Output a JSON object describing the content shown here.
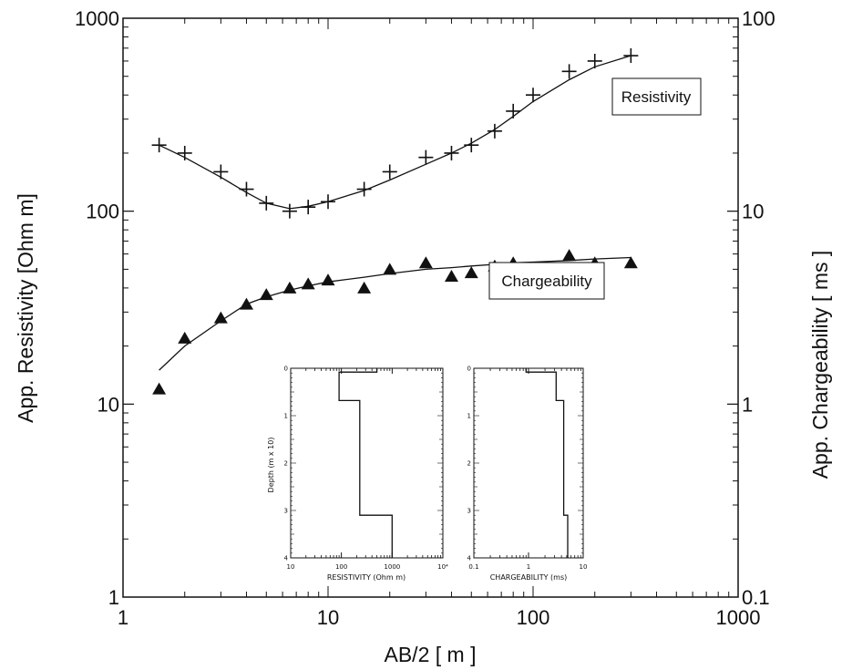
{
  "chart_data": [
    {
      "type": "scatter",
      "title": "",
      "xlabel": "AB/2  [ m ]",
      "ylabel": "App. Resistivity  [Ohm m]",
      "y2label": "App. Chargeability  [ ms ]",
      "xscale": "log",
      "yscale": "log",
      "y2scale": "log",
      "xlim": [
        1,
        1000
      ],
      "ylim": [
        1,
        1000
      ],
      "y2lim": [
        0.1,
        100
      ],
      "x_tick_labels": [
        "1",
        "10",
        "100",
        "1000"
      ],
      "y_tick_labels": [
        "1",
        "10",
        "100",
        "1000"
      ],
      "y2_tick_labels": [
        "0.1",
        "1",
        "10",
        "100"
      ],
      "grid": false,
      "series": [
        {
          "name": "Resistivity",
          "marker": "plus",
          "axis": "left",
          "x": [
            1.5,
            2,
            3,
            4,
            5,
            6.5,
            8,
            10,
            15,
            20,
            30,
            40,
            50,
            65,
            80,
            100,
            150,
            200,
            300
          ],
          "y": [
            220,
            200,
            160,
            130,
            110,
            100,
            105,
            112,
            130,
            160,
            190,
            200,
            220,
            260,
            330,
            400,
            530,
            600,
            640
          ],
          "fit_x": [
            1.5,
            2,
            3,
            4,
            5,
            6.5,
            8,
            10,
            15,
            20,
            30,
            40,
            50,
            65,
            80,
            100,
            150,
            200,
            300
          ],
          "fit_y": [
            220,
            190,
            150,
            125,
            110,
            103,
            106,
            112,
            128,
            145,
            175,
            200,
            225,
            265,
            310,
            370,
            480,
            560,
            640
          ]
        },
        {
          "name": "Chargeability",
          "marker": "triangle",
          "axis": "right",
          "x": [
            1.5,
            2,
            3,
            4,
            5,
            6.5,
            8,
            10,
            15,
            20,
            30,
            40,
            50,
            65,
            80,
            100,
            150,
            200,
            300
          ],
          "y": [
            1.2,
            2.2,
            2.8,
            3.3,
            3.7,
            4.0,
            4.2,
            4.4,
            4.0,
            5.0,
            5.4,
            4.6,
            4.8,
            5.2,
            5.4,
            5.0,
            5.9,
            5.4,
            5.4
          ],
          "fit_x": [
            1.5,
            2,
            3,
            4,
            5,
            6.5,
            8,
            10,
            15,
            20,
            30,
            40,
            50,
            65,
            80,
            100,
            150,
            200,
            300
          ],
          "fit_y": [
            1.5,
            2.0,
            2.7,
            3.3,
            3.6,
            3.9,
            4.1,
            4.3,
            4.55,
            4.75,
            5.0,
            5.1,
            5.2,
            5.3,
            5.4,
            5.45,
            5.55,
            5.65,
            5.75
          ]
        }
      ],
      "annotations": [
        "Resistivity",
        "Chargeability"
      ]
    },
    {
      "type": "line",
      "title": "",
      "xlabel": "RESISTIVITY (Ohm m)",
      "ylabel": "Depth (m x 10)",
      "xscale": "log",
      "xlim": [
        10,
        10000
      ],
      "ylim": [
        4,
        0
      ],
      "x_tick_labels": [
        "10",
        "100",
        "1000",
        "10⁴"
      ],
      "y_tick_labels": [
        "0",
        "1",
        "2",
        "3",
        "4"
      ],
      "series": [
        {
          "name": "",
          "step_values": [
            500,
            90,
            230,
            1000
          ],
          "layer_tops": [
            0,
            0.08,
            0.68,
            3.1
          ],
          "layer_bottom": 4
        }
      ]
    },
    {
      "type": "line",
      "title": "",
      "xlabel": "CHARGEABILITY (ms)",
      "ylabel": "",
      "xscale": "log",
      "xlim": [
        0.1,
        10
      ],
      "ylim": [
        4,
        0
      ],
      "x_tick_labels": [
        "0.1",
        "1",
        "10"
      ],
      "y_tick_labels": [
        "0",
        "1",
        "2",
        "3",
        "4"
      ],
      "series": [
        {
          "name": "",
          "step_values": [
            0.9,
            3.2,
            4.4,
            5.2
          ],
          "layer_tops": [
            0,
            0.08,
            0.68,
            3.1
          ],
          "layer_bottom": 4
        }
      ]
    }
  ]
}
